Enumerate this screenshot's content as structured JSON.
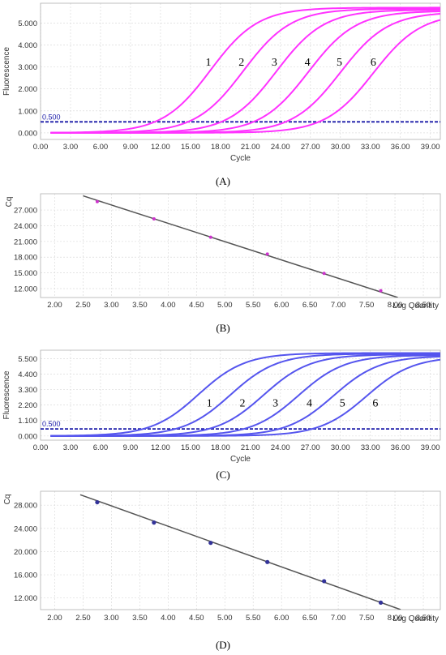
{
  "panels": [
    {
      "label": "(A)"
    },
    {
      "label": "(B)"
    },
    {
      "label": "(C)"
    },
    {
      "label": "(D)"
    }
  ],
  "chart_data": [
    {
      "id": "A",
      "type": "line",
      "xlabel": "Cycle",
      "ylabel": "Fluorescence",
      "xlim": [
        0,
        40
      ],
      "ylim": [
        -0.3,
        5.9
      ],
      "xticks": [
        "0.00",
        "3.00",
        "6.00",
        "9.00",
        "12.00",
        "15.00",
        "18.00",
        "21.00",
        "24.00",
        "27.00",
        "30.00",
        "33.00",
        "36.00",
        "39.00"
      ],
      "yticks": [
        "0.000",
        "1.000",
        "2.000",
        "3.000",
        "4.000",
        "5.000"
      ],
      "threshold": {
        "value": 0.5,
        "label": "0.500"
      },
      "color": "#ff33ff",
      "grid": true,
      "series": [
        {
          "name": "1",
          "start": 1,
          "end": 40,
          "midpoint": 17.0,
          "slope": 0.42,
          "top": 5.7
        },
        {
          "name": "2",
          "start": 1,
          "end": 40,
          "midpoint": 20.3,
          "slope": 0.42,
          "top": 5.65
        },
        {
          "name": "3",
          "start": 1,
          "end": 40,
          "midpoint": 23.6,
          "slope": 0.42,
          "top": 5.6
        },
        {
          "name": "4",
          "start": 1,
          "end": 40,
          "midpoint": 26.8,
          "slope": 0.42,
          "top": 5.55
        },
        {
          "name": "5",
          "start": 1,
          "end": 40,
          "midpoint": 30.0,
          "slope": 0.42,
          "top": 5.5
        },
        {
          "name": "6",
          "start": 1,
          "end": 40,
          "midpoint": 33.3,
          "slope": 0.42,
          "top": 5.45
        }
      ],
      "annotations": [
        {
          "text": "1",
          "x": 16.8,
          "y": 3.05
        },
        {
          "text": "2",
          "x": 20.1,
          "y": 3.05
        },
        {
          "text": "3",
          "x": 23.4,
          "y": 3.05
        },
        {
          "text": "4",
          "x": 26.7,
          "y": 3.05
        },
        {
          "text": "5",
          "x": 29.9,
          "y": 3.05
        },
        {
          "text": "6",
          "x": 33.3,
          "y": 3.05
        }
      ]
    },
    {
      "id": "B",
      "type": "scatter",
      "xlabel": "Log Quantity",
      "ylabel": "Cq",
      "xlim": [
        1.75,
        8.8
      ],
      "ylim": [
        10.3,
        30.1
      ],
      "xticks": [
        "2.00",
        "2.50",
        "3.00",
        "3.50",
        "4.00",
        "4.50",
        "5.00",
        "5.50",
        "6.00",
        "6.50",
        "7.00",
        "7.50",
        "8.00",
        "8.50"
      ],
      "yticks": [
        "12.000",
        "15.000",
        "18.000",
        "21.000",
        "24.000",
        "27.000"
      ],
      "grid": true,
      "point_color": "#cc33cc",
      "line": {
        "x1": 2.5,
        "y1": 29.7,
        "x2": 8.05,
        "y2": 10.3
      },
      "points": [
        {
          "x": 2.75,
          "y": 28.6
        },
        {
          "x": 3.75,
          "y": 25.3
        },
        {
          "x": 4.75,
          "y": 21.8
        },
        {
          "x": 5.75,
          "y": 18.6
        },
        {
          "x": 6.75,
          "y": 14.9
        },
        {
          "x": 7.75,
          "y": 11.6
        }
      ]
    },
    {
      "id": "C",
      "type": "line",
      "xlabel": "Cycle",
      "ylabel": "Fluorescence",
      "xlim": [
        0,
        40
      ],
      "ylim": [
        -0.3,
        6.1
      ],
      "xticks": [
        "0.00",
        "3.00",
        "6.00",
        "9.00",
        "12.00",
        "15.00",
        "18.00",
        "21.00",
        "24.00",
        "27.00",
        "30.00",
        "33.00",
        "36.00",
        "39.00"
      ],
      "yticks": [
        "0.000",
        "1.100",
        "2.200",
        "3.300",
        "4.400",
        "5.500"
      ],
      "threshold": {
        "value": 0.5,
        "label": "0.500"
      },
      "color": "#5555ee",
      "grid": true,
      "series": [
        {
          "name": "1",
          "start": 1,
          "end": 40,
          "midpoint": 15.8,
          "slope": 0.43,
          "top": 5.9
        },
        {
          "name": "2",
          "start": 1,
          "end": 40,
          "midpoint": 19.0,
          "slope": 0.43,
          "top": 5.85
        },
        {
          "name": "3",
          "start": 1,
          "end": 40,
          "midpoint": 22.3,
          "slope": 0.43,
          "top": 5.8
        },
        {
          "name": "4",
          "start": 1,
          "end": 40,
          "midpoint": 25.8,
          "slope": 0.43,
          "top": 5.75
        },
        {
          "name": "5",
          "start": 1,
          "end": 40,
          "midpoint": 29.3,
          "slope": 0.43,
          "top": 5.7
        },
        {
          "name": "6",
          "start": 1,
          "end": 40,
          "midpoint": 32.6,
          "slope": 0.43,
          "top": 5.65
        }
      ],
      "annotations": [
        {
          "text": "1",
          "x": 16.9,
          "y": 2.1
        },
        {
          "text": "2",
          "x": 20.2,
          "y": 2.1
        },
        {
          "text": "3",
          "x": 23.5,
          "y": 2.1
        },
        {
          "text": "4",
          "x": 26.9,
          "y": 2.1
        },
        {
          "text": "5",
          "x": 30.2,
          "y": 2.1
        },
        {
          "text": "6",
          "x": 33.5,
          "y": 2.1
        }
      ]
    },
    {
      "id": "D",
      "type": "scatter",
      "xlabel": "Log Quantity",
      "ylabel": "Cq",
      "xlim": [
        1.75,
        8.8
      ],
      "ylim": [
        10.0,
        30.4
      ],
      "xticks": [
        "2.00",
        "2.50",
        "3.00",
        "3.50",
        "4.00",
        "4.50",
        "5.00",
        "5.50",
        "6.00",
        "6.50",
        "7.00",
        "7.50",
        "8.00",
        "8.50"
      ],
      "yticks": [
        "12.000",
        "16.000",
        "20.000",
        "24.000",
        "28.000"
      ],
      "grid": true,
      "point_color": "#333399",
      "line": {
        "x1": 2.45,
        "y1": 29.8,
        "x2": 8.1,
        "y2": 10.0
      },
      "points": [
        {
          "x": 2.75,
          "y": 28.5
        },
        {
          "x": 3.75,
          "y": 25.0
        },
        {
          "x": 4.75,
          "y": 21.5
        },
        {
          "x": 5.75,
          "y": 18.2
        },
        {
          "x": 6.75,
          "y": 14.9
        },
        {
          "x": 7.75,
          "y": 11.2
        }
      ]
    }
  ]
}
